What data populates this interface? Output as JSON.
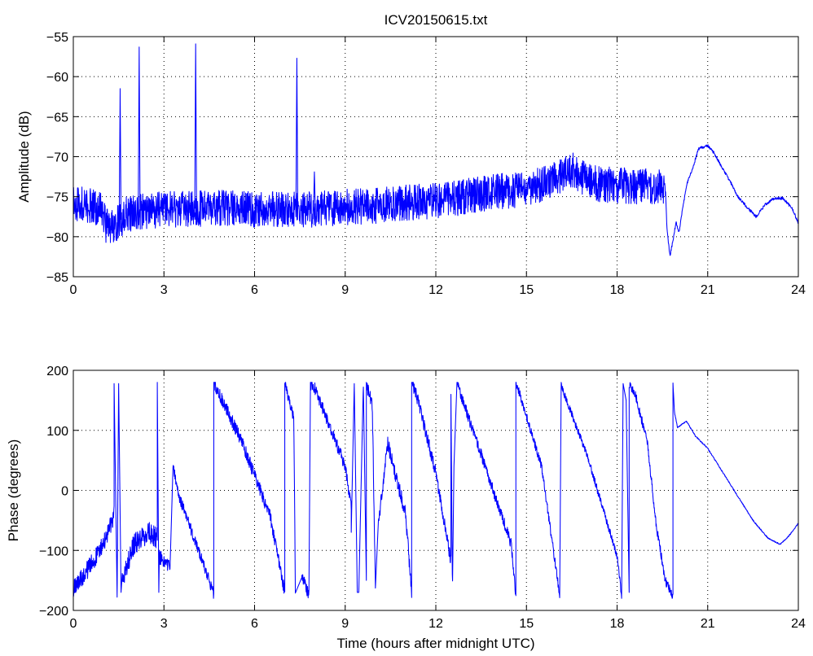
{
  "figure_title": "ICV20150615.txt",
  "colors": {
    "series": "#0000ff",
    "axes": "#000000",
    "background": "#ffffff"
  },
  "chart_data": [
    {
      "type": "line",
      "title": "ICV20150615.txt",
      "xlabel": "",
      "ylabel": "Amplitude (dB)",
      "xlim": [
        0,
        24
      ],
      "ylim": [
        -85,
        -55
      ],
      "xticks": [
        0,
        3,
        6,
        9,
        12,
        15,
        18,
        21,
        24
      ],
      "yticks": [
        -85,
        -80,
        -75,
        -70,
        -65,
        -60,
        -55
      ],
      "xtick_labels": [
        "0",
        "3",
        "6",
        "9",
        "12",
        "15",
        "18",
        "21",
        "24"
      ],
      "ytick_labels": [
        "−85",
        "−80",
        "−75",
        "−70",
        "−65",
        "−60",
        "−55"
      ],
      "grid": true,
      "legend": "none",
      "noise_amplitude": 4.5,
      "noise_until_x": 19.6,
      "series": [
        {
          "envelope": [
            [
              0.0,
              -75.8
            ],
            [
              0.5,
              -76.0
            ],
            [
              0.9,
              -76.5
            ],
            [
              1.1,
              -78.8
            ],
            [
              1.4,
              -78.5
            ],
            [
              1.7,
              -77.3
            ],
            [
              2.0,
              -77.0
            ],
            [
              3.0,
              -76.6
            ],
            [
              4.0,
              -76.5
            ],
            [
              5.0,
              -76.4
            ],
            [
              6.0,
              -76.6
            ],
            [
              7.0,
              -76.5
            ],
            [
              8.0,
              -76.6
            ],
            [
              9.0,
              -76.3
            ],
            [
              10.0,
              -76.1
            ],
            [
              11.0,
              -75.8
            ],
            [
              12.0,
              -75.5
            ],
            [
              13.0,
              -75.0
            ],
            [
              14.0,
              -74.4
            ],
            [
              15.0,
              -74.0
            ],
            [
              15.6,
              -73.4
            ],
            [
              16.0,
              -72.6
            ],
            [
              16.5,
              -71.6
            ],
            [
              16.9,
              -72.6
            ],
            [
              17.3,
              -73.4
            ],
            [
              18.0,
              -73.6
            ],
            [
              19.0,
              -73.7
            ],
            [
              19.6,
              -73.9
            ],
            [
              19.65,
              -79.0
            ],
            [
              19.75,
              -82.4
            ],
            [
              19.85,
              -80.5
            ],
            [
              19.95,
              -78.2
            ],
            [
              20.05,
              -79.5
            ],
            [
              20.15,
              -77.0
            ],
            [
              20.3,
              -73.5
            ],
            [
              20.5,
              -71.5
            ],
            [
              20.7,
              -69.0
            ],
            [
              21.0,
              -68.6
            ],
            [
              21.2,
              -69.5
            ],
            [
              21.5,
              -71.5
            ],
            [
              21.8,
              -73.5
            ],
            [
              22.0,
              -75.0
            ],
            [
              22.3,
              -76.3
            ],
            [
              22.6,
              -77.5
            ],
            [
              22.9,
              -76.0
            ],
            [
              23.2,
              -75.2
            ],
            [
              23.5,
              -75.2
            ],
            [
              23.8,
              -76.5
            ],
            [
              24.0,
              -78.3
            ]
          ],
          "spikes": [
            [
              1.55,
              -61.5
            ],
            [
              2.18,
              -56.3
            ],
            [
              4.05,
              -55.9
            ],
            [
              7.4,
              -57.7
            ],
            [
              7.98,
              -71.9
            ]
          ]
        }
      ]
    },
    {
      "type": "line",
      "title": "",
      "xlabel": "Time (hours after midnight UTC)",
      "ylabel": "Phase (degrees)",
      "xlim": [
        0,
        24
      ],
      "ylim": [
        -200,
        200
      ],
      "xticks": [
        0,
        3,
        6,
        9,
        12,
        15,
        18,
        21,
        24
      ],
      "yticks": [
        -200,
        -100,
        0,
        100,
        200
      ],
      "xtick_labels": [
        "0",
        "3",
        "6",
        "9",
        "12",
        "15",
        "18",
        "21",
        "24"
      ],
      "ytick_labels": [
        "−200",
        "−100",
        "0",
        "100",
        "200"
      ],
      "grid": true,
      "legend": "none",
      "series": [
        {
          "segments": [
            {
              "x": [
                0.0,
                0.5,
                1.0,
                1.35
              ],
              "y": [
                -165,
                -130,
                -90,
                -40
              ],
              "noise": 30
            },
            {
              "x": [
                1.35,
                1.45
              ],
              "y": [
                178,
                -178
              ],
              "noise": 0
            },
            {
              "x": [
                1.5,
                1.58
              ],
              "y": [
                178,
                -170
              ],
              "noise": 0
            },
            {
              "x": [
                1.62,
                2.0,
                2.5,
                2.78
              ],
              "y": [
                -150,
                -90,
                -70,
                -80
              ],
              "noise": 35
            },
            {
              "x": [
                2.78,
                2.83
              ],
              "y": [
                180,
                -170
              ],
              "noise": 0
            },
            {
              "x": [
                2.85,
                3.2
              ],
              "y": [
                -110,
                -130
              ],
              "noise": 25
            },
            {
              "x": [
                3.3,
                3.5,
                4.5,
                4.65
              ],
              "y": [
                40,
                -10,
                -150,
                -175
              ],
              "noise": 18
            },
            {
              "x": [
                4.65,
                4.75,
                5.5,
                6.5,
                7.0
              ],
              "y": [
                178,
                170,
                90,
                -40,
                -170
              ],
              "noise": 22
            },
            {
              "x": [
                7.0,
                7.3,
                7.35
              ],
              "y": [
                178,
                120,
                -170
              ],
              "noise": 18
            },
            {
              "x": [
                7.55,
                7.8
              ],
              "y": [
                -140,
                -175
              ],
              "noise": 20
            },
            {
              "x": [
                7.85,
                8.0,
                9.0,
                9.2
              ],
              "y": [
                178,
                170,
                40,
                -30
              ],
              "noise": 20
            },
            {
              "x": [
                9.2,
                9.3,
                9.4
              ],
              "y": [
                -70,
                178,
                -170
              ],
              "noise": 0
            },
            {
              "x": [
                9.45,
                9.6,
                9.7
              ],
              "y": [
                -170,
                178,
                -150
              ],
              "noise": 0
            },
            {
              "x": [
                9.7,
                9.9,
                10.0
              ],
              "y": [
                178,
                140,
                -170
              ],
              "noise": 25
            },
            {
              "x": [
                10.1,
                10.4,
                11.0,
                11.2
              ],
              "y": [
                -60,
                80,
                -40,
                -170
              ],
              "noise": 25
            },
            {
              "x": [
                11.2,
                11.3,
                12.0,
                12.5
              ],
              "y": [
                178,
                170,
                30,
                -120
              ],
              "noise": 22
            },
            {
              "x": [
                12.5,
                12.55,
                12.6
              ],
              "y": [
                160,
                -170,
                40
              ],
              "noise": 0
            },
            {
              "x": [
                12.7,
                12.75,
                13.5,
                14.5,
                14.65
              ],
              "y": [
                178,
                170,
                60,
                -90,
                -175
              ],
              "noise": 18
            },
            {
              "x": [
                14.65,
                14.75,
                15.5,
                16.1
              ],
              "y": [
                178,
                165,
                40,
                -175
              ],
              "noise": 14
            },
            {
              "x": [
                16.15,
                16.25,
                17.0,
                18.0,
                18.15
              ],
              "y": [
                178,
                160,
                60,
                -110,
                -175
              ],
              "noise": 12
            },
            {
              "x": [
                18.2,
                18.3,
                18.4
              ],
              "y": [
                178,
                150,
                -170
              ],
              "noise": 0
            },
            {
              "x": [
                18.4,
                18.6,
                19.0,
                19.3,
                19.6,
                19.85
              ],
              "y": [
                178,
                160,
                80,
                -60,
                -150,
                -178
              ],
              "noise": 16
            },
            {
              "x": [
                19.85,
                19.9,
                20.0,
                20.3,
                20.6,
                21.0,
                21.5,
                22.0,
                22.5,
                23.0,
                23.4,
                23.7,
                24.0
              ],
              "y": [
                178,
                130,
                105,
                115,
                90,
                70,
                30,
                -10,
                -50,
                -80,
                -90,
                -75,
                -55
              ],
              "noise": 2
            }
          ]
        }
      ]
    }
  ]
}
